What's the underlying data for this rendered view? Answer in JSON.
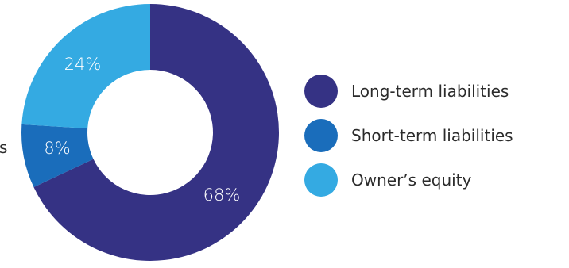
{
  "chart_data": {
    "type": "pie",
    "variant": "donut",
    "title": "",
    "slices": [
      {
        "label": "Long-term liabilities",
        "value": 68,
        "display": "68%",
        "color": "#353284"
      },
      {
        "label": "Short-term liabilities",
        "value": 8,
        "display": "8%",
        "color": "#1a6dbb"
      },
      {
        "label": "Owner’s equity",
        "value": 24,
        "display": "24%",
        "color": "#34aae2"
      }
    ],
    "legend_position": "right",
    "clipped_left_label_text": "s"
  }
}
